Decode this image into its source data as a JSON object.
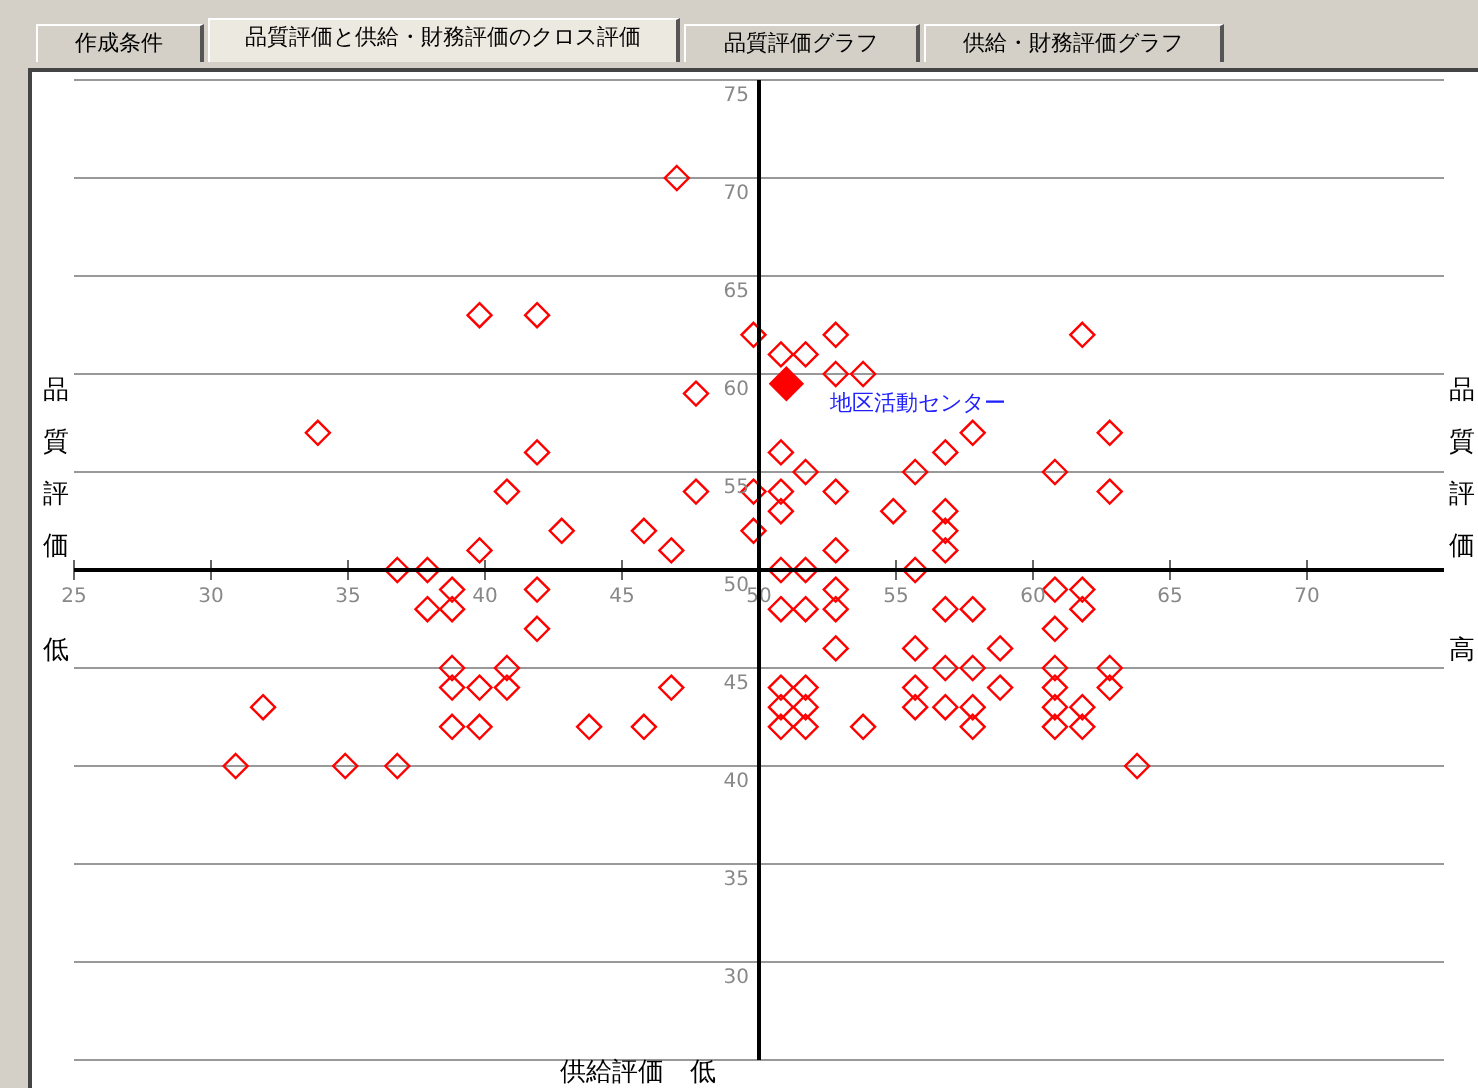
{
  "chart_data": {
    "type": "scatter",
    "title": "品質評価と供給・財務評価のクロス評価",
    "ylabel": "品質評価",
    "annotations": [
      "作成条件",
      "品質評価グラフ",
      "供給・財務評価グラフ",
      "品質評価",
      "低",
      "高",
      "供給評価　低"
    ],
    "xlim": [
      25,
      75
    ],
    "ylim": [
      25,
      75
    ],
    "xticks": [
      25,
      30,
      35,
      40,
      45,
      50,
      55,
      60,
      65,
      70
    ],
    "yticks": [
      30,
      35,
      40,
      45,
      50,
      55,
      60,
      65,
      70,
      75
    ],
    "grid": "y",
    "marker": "diamond",
    "series": [
      {
        "color": "#ff0000",
        "x": [
          47.0,
          39.8,
          41.9,
          49.8,
          52.8,
          61.8,
          50.8,
          51.7,
          52.8,
          53.8,
          47.7,
          33.9,
          57.8,
          62.8,
          41.9,
          50.8,
          56.8,
          51.7,
          55.7,
          60.8,
          40.8,
          47.7,
          49.8,
          50.8,
          52.8,
          62.8,
          50.8,
          54.9,
          56.8,
          42.8,
          45.8,
          49.8,
          56.8,
          39.8,
          46.8,
          52.8,
          56.8,
          36.8,
          37.9,
          50.8,
          51.7,
          55.7,
          38.8,
          41.9,
          52.8,
          60.8,
          61.8,
          37.9,
          38.8,
          50.8,
          51.7,
          52.8,
          56.8,
          57.8,
          61.8,
          41.9,
          60.8,
          52.8,
          55.7,
          58.8,
          38.8,
          40.8,
          56.8,
          57.8,
          60.8,
          62.8,
          38.8,
          39.8,
          40.8,
          46.8,
          50.8,
          51.7,
          55.7,
          58.8,
          60.8,
          62.8,
          31.9,
          50.8,
          51.7,
          55.7,
          56.8,
          57.8,
          60.8,
          61.8,
          38.8,
          39.8,
          43.8,
          45.8,
          50.8,
          51.7,
          53.8,
          57.8,
          60.8,
          61.8,
          30.9,
          34.9,
          36.8,
          63.8
        ],
        "values": [
          70,
          63,
          63,
          62,
          62,
          62,
          61,
          61,
          60,
          60,
          59,
          57,
          57,
          57,
          56,
          56,
          56,
          55,
          55,
          55,
          54,
          54,
          54,
          54,
          54,
          54,
          53,
          53,
          53,
          52,
          52,
          52,
          52,
          51,
          51,
          51,
          51,
          50,
          50,
          50,
          50,
          50,
          49,
          49,
          49,
          49,
          49,
          48,
          48,
          48,
          48,
          48,
          48,
          48,
          48,
          47,
          47,
          46,
          46,
          46,
          45,
          45,
          45,
          45,
          45,
          45,
          44,
          44,
          44,
          44,
          44,
          44,
          44,
          44,
          44,
          44,
          43,
          43,
          43,
          43,
          43,
          43,
          43,
          43,
          42,
          42,
          42,
          42,
          42,
          42,
          42,
          42,
          42,
          42,
          40,
          40,
          40,
          40
        ]
      },
      {
        "name": "地区活動センター",
        "color": "#ff0000",
        "x": [
          51.0
        ],
        "values": [
          59.5
        ]
      }
    ]
  }
}
